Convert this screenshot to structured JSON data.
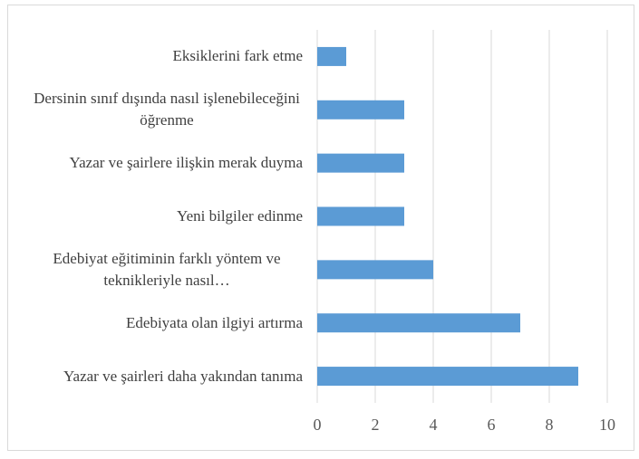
{
  "chart_data": {
    "type": "bar",
    "orientation": "horizontal",
    "categories": [
      "Eksiklerini fark etme",
      "Dersinin sınıf dışında nasıl işlenebileceğini öğrenme",
      "Yazar ve şairlere ilişkin merak duyma",
      "Yeni bilgiler edinme",
      "Edebiyat eğitiminin farklı yöntem ve teknikleriyle nasıl…",
      "Edebiyata olan ilgiyi artırma",
      "Yazar ve şairleri daha yakından tanıma"
    ],
    "values": [
      1,
      3,
      3,
      3,
      4,
      7,
      9
    ],
    "color": "#5b9bd5",
    "xlim": [
      0,
      10
    ],
    "xticks": [
      0,
      2,
      4,
      6,
      8,
      10
    ],
    "grid": true
  }
}
